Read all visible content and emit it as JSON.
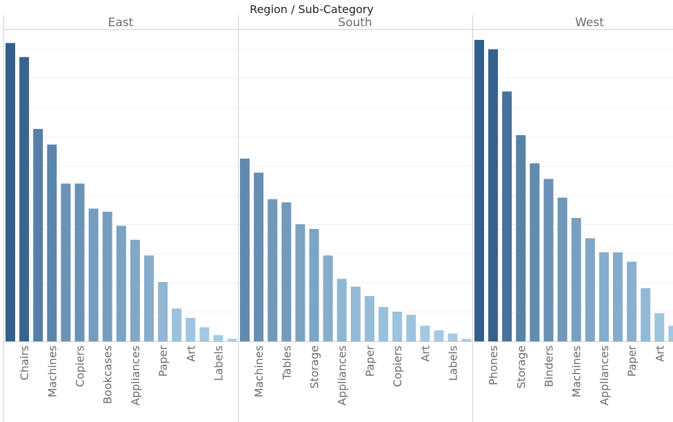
{
  "chart_data": {
    "type": "bar",
    "title": "Region / Sub-Category",
    "facet_field": "Region",
    "ylim": [
      0,
      100
    ],
    "y_axis_labels_shown": false,
    "grid": "horizontal",
    "colors": {
      "dark": "#2d5a87",
      "light": "#a9cde6"
    },
    "panels": [
      {
        "name": "East",
        "categories": [
          "",
          "Chairs",
          "",
          "Machines",
          "",
          "Copiers",
          "",
          "Bookcases",
          "",
          "Appliances",
          "",
          "Paper",
          "",
          "Art",
          "",
          "Labels",
          ""
        ],
        "values": [
          95.5,
          91.0,
          68.0,
          63.0,
          50.5,
          50.5,
          42.5,
          41.5,
          37.0,
          32.5,
          27.5,
          19.0,
          10.5,
          7.5,
          4.5,
          2.0,
          0.8
        ]
      },
      {
        "name": "South",
        "categories": [
          "",
          "Machines",
          "",
          "Tables",
          "",
          "Storage",
          "",
          "Appliances",
          "",
          "Paper",
          "",
          "Copiers",
          "",
          "Art",
          "",
          "Labels",
          ""
        ],
        "values": [
          58.5,
          54.0,
          45.5,
          44.5,
          37.5,
          36.0,
          27.5,
          20.0,
          17.5,
          14.5,
          11.0,
          9.5,
          8.5,
          5.0,
          3.5,
          2.5,
          0.8
        ]
      },
      {
        "name": "West",
        "categories": [
          "",
          "Phones",
          "",
          "Storage",
          "",
          "Binders",
          "",
          "Machines",
          "",
          "Appliances",
          "",
          "Paper",
          "",
          "Art",
          ""
        ],
        "values": [
          96.5,
          93.5,
          80.0,
          66.0,
          57.0,
          52.0,
          46.0,
          39.5,
          33.0,
          28.5,
          28.5,
          25.5,
          17.0,
          9.0,
          5.0
        ]
      }
    ]
  }
}
